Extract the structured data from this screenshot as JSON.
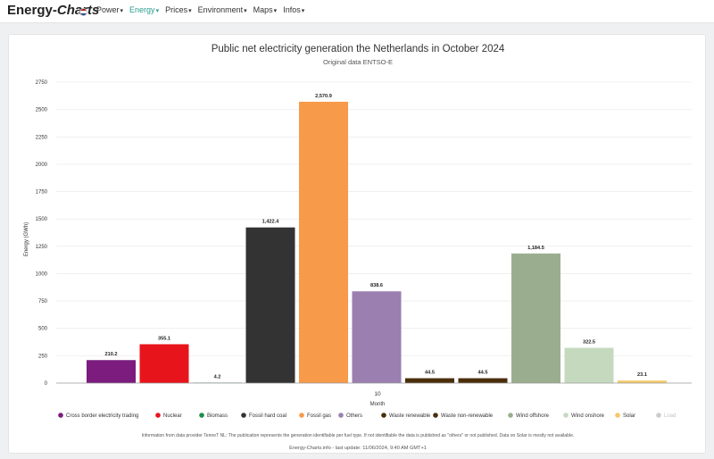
{
  "brand": {
    "name_a": "Energy-",
    "name_b": "Charts"
  },
  "flag_colors": [
    "#ae1c28",
    "#ffffff",
    "#21468b"
  ],
  "nav": [
    {
      "label": "Power",
      "active": false
    },
    {
      "label": "Energy",
      "active": true
    },
    {
      "label": "Prices",
      "active": false
    },
    {
      "label": "Environment",
      "active": false
    },
    {
      "label": "Maps",
      "active": false
    },
    {
      "label": "Infos",
      "active": false
    }
  ],
  "chart_data": {
    "type": "bar",
    "title": "Public net electricity generation the Netherlands in October 2024",
    "subtitle": "Original data ENTSO-E",
    "xlabel": "Month",
    "ylabel": "Energy (GWh)",
    "categories": [
      "10"
    ],
    "ylim": [
      0,
      2750
    ],
    "yticks": [
      0,
      250,
      500,
      750,
      1000,
      1250,
      1500,
      1750,
      2000,
      2250,
      2500,
      2750
    ],
    "ytick_labels": [
      "0",
      "250",
      "500",
      "750",
      "1000",
      "1250",
      "1500",
      "1750",
      "2000",
      "2250",
      "2500",
      "2750"
    ],
    "grid": true,
    "legend_position": "bottom",
    "series": [
      {
        "name": "Cross border electricity trading",
        "value": 210.2,
        "label": "210.2",
        "color": "#7b1c7e",
        "visible": true
      },
      {
        "name": "Nuclear",
        "value": 355.1,
        "label": "355.1",
        "color": "#e8141c",
        "visible": true
      },
      {
        "name": "Biomass",
        "value": 4.2,
        "label": "4.2",
        "color": "#1e8c4e",
        "visible": true
      },
      {
        "name": "Fossil hard coal",
        "value": 1422.4,
        "label": "1,422.4",
        "color": "#333333",
        "visible": true
      },
      {
        "name": "Fossil gas",
        "value": 2570.9,
        "label": "2,570.9",
        "color": "#f79a4a",
        "visible": true
      },
      {
        "name": "Others",
        "value": 838.6,
        "label": "838.6",
        "color": "#9b7fb0",
        "visible": true
      },
      {
        "name": "Waste renewable",
        "value": 44.5,
        "label": "44.5",
        "color": "#4a2e0c",
        "visible": true
      },
      {
        "name": "Waste non-renewable",
        "value": 44.5,
        "label": "44.5",
        "color": "#4a2e0c",
        "visible": true
      },
      {
        "name": "Wind offshore",
        "value": 1184.5,
        "label": "1,184.5",
        "color": "#9aae8f",
        "visible": true
      },
      {
        "name": "Wind onshore",
        "value": 322.5,
        "label": "322.5",
        "color": "#c5d9bf",
        "visible": true
      },
      {
        "name": "Solar",
        "value": 23.1,
        "label": "23.1",
        "color": "#f4c96a",
        "visible": true
      },
      {
        "name": "Load",
        "value": null,
        "label": "",
        "color": "#cccccc",
        "visible": false
      }
    ],
    "footnote": "Information from data provider TenneT NL: The publication represents the generation identifiable per fuel type. If not identifiable the data is published as \"others\" or not published. Data on Solar is mostly not available.",
    "credit": "Energy-Charts.info - last update: 11/06/2024, 9:40 AM GMT+1"
  }
}
